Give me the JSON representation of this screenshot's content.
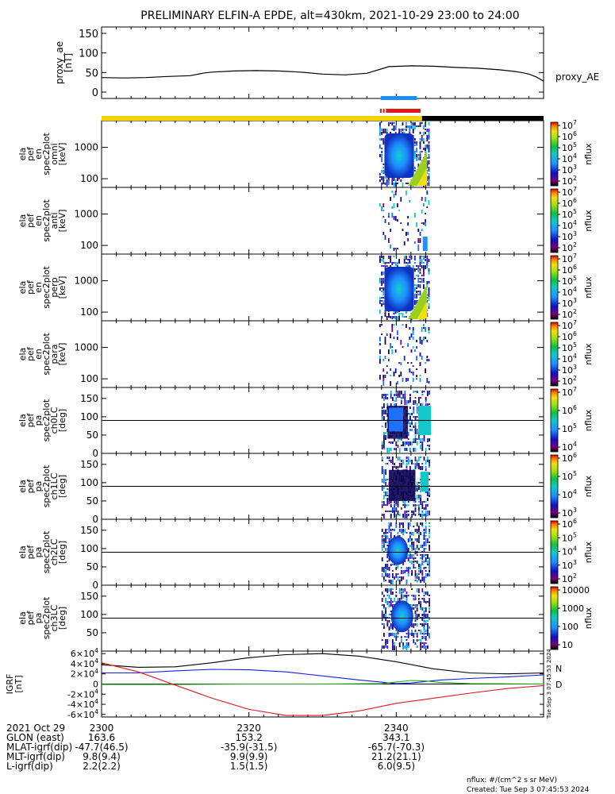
{
  "title": "PRELIMINARY ELFIN-A EPDE, alt=430km, 2021-10-29 23:00 to 24:00",
  "colors": {
    "proxy_line": "#000000",
    "bar_yellow": "#f5d400",
    "bar_black": "#000000",
    "bar_blue": "#1e8cff",
    "bar_red": "#e01818",
    "bx": "#000000",
    "by": "#1a1aee",
    "bz": "#19b019",
    "bt": "#e01818"
  },
  "chart_data": [
    {
      "type": "line",
      "name": "proxy_ae",
      "ylabel": [
        "proxy_ae",
        "[nT]"
      ],
      "legend": "proxy_AE",
      "ylim": [
        0,
        150
      ],
      "yticks": [
        "150",
        "100",
        "50",
        "0"
      ],
      "xlim": [
        0,
        60
      ],
      "x": [
        0,
        3,
        6,
        9,
        12,
        14,
        15,
        18,
        21,
        24,
        27,
        30,
        33,
        36,
        39,
        42,
        45,
        48,
        51,
        54,
        56,
        57,
        58,
        59,
        60
      ],
      "y": [
        37,
        36,
        37,
        40,
        42,
        49,
        51,
        54,
        55,
        54,
        51,
        46,
        44,
        48,
        65,
        67,
        66,
        63,
        61,
        57,
        53,
        50,
        46,
        39,
        28
      ]
    },
    {
      "type": "heatmap",
      "name": "omni",
      "ylabel": [
        "ela",
        "pef",
        "en",
        "spec2plot",
        "omni",
        "[keV]"
      ],
      "scale": "log",
      "yticks": [
        "1000",
        "100"
      ],
      "colorbar": {
        "label": "nflux",
        "ticks": [
          "10^7",
          "10^6",
          "10^5",
          "10^4",
          "10^3",
          "10^2"
        ]
      }
    },
    {
      "type": "heatmap",
      "name": "anti",
      "ylabel": [
        "ela",
        "pef",
        "en",
        "spec2plot",
        "anti",
        "[keV]"
      ],
      "scale": "log",
      "yticks": [
        "1000",
        "100"
      ],
      "colorbar": {
        "label": "nflux",
        "ticks": [
          "10^7",
          "10^6",
          "10^5",
          "10^4",
          "10^3",
          "10^2"
        ]
      }
    },
    {
      "type": "heatmap",
      "name": "perp",
      "ylabel": [
        "ela",
        "pef",
        "en",
        "spec2plot",
        "perp",
        "[keV]"
      ],
      "scale": "log",
      "yticks": [
        "1000",
        "100"
      ],
      "colorbar": {
        "label": "nflux",
        "ticks": [
          "10^7",
          "10^6",
          "10^5",
          "10^4",
          "10^3",
          "10^2"
        ]
      }
    },
    {
      "type": "heatmap",
      "name": "para",
      "ylabel": [
        "ela",
        "pef",
        "en",
        "spec2plot",
        "para",
        "[keV]"
      ],
      "scale": "log",
      "yticks": [
        "1000",
        "100"
      ],
      "colorbar": {
        "label": "nflux",
        "ticks": [
          "10^7",
          "10^6",
          "10^5",
          "10^4",
          "10^3",
          "10^2"
        ]
      }
    },
    {
      "type": "heatmap",
      "name": "ch0LC",
      "ylabel": [
        "ela",
        "pef",
        "pa",
        "spec2plot",
        "ch0LC",
        "[deg]"
      ],
      "ylim": [
        0,
        180
      ],
      "yticks": [
        "150",
        "100",
        "50",
        "0"
      ],
      "colorbar": {
        "label": "nflux",
        "ticks": [
          "10^7",
          "10^6",
          "10^5",
          "10^4"
        ]
      }
    },
    {
      "type": "heatmap",
      "name": "ch1LC",
      "ylabel": [
        "ela",
        "pef",
        "pa",
        "spec2plot",
        "ch1LC",
        "[deg]"
      ],
      "ylim": [
        0,
        180
      ],
      "yticks": [
        "150",
        "100",
        "50",
        "0"
      ],
      "colorbar": {
        "label": "nflux",
        "ticks": [
          "10^6",
          "10^5",
          "10^4",
          "10^3"
        ]
      }
    },
    {
      "type": "heatmap",
      "name": "ch2LC",
      "ylabel": [
        "ela",
        "pef",
        "pa",
        "spec2plot",
        "ch2LC",
        "[deg]"
      ],
      "ylim": [
        0,
        180
      ],
      "yticks": [
        "150",
        "100",
        "50",
        "0"
      ],
      "colorbar": {
        "label": "nflux",
        "ticks": [
          "10^6",
          "10^5",
          "10^4",
          "10^3",
          "10^2"
        ]
      }
    },
    {
      "type": "heatmap",
      "name": "ch3LC",
      "ylabel": [
        "ela",
        "pef",
        "pa",
        "spec2plot",
        "ch3LC",
        "[deg]"
      ],
      "ylim": [
        0,
        180
      ],
      "yticks": [
        "150",
        "100",
        "50"
      ],
      "colorbar": {
        "label": "nflux",
        "ticks": [
          "10000",
          "1000",
          "100",
          "10"
        ]
      }
    },
    {
      "type": "line",
      "name": "IGRF",
      "ylabel": [
        "IGRF",
        "[nT]"
      ],
      "ylim": [
        -65000,
        65000
      ],
      "yticks": [
        "6×10^4",
        "4×10^4",
        "2×10^4",
        "0",
        "-2×10^4",
        "-4×10^4",
        "-6×10^4"
      ],
      "legend_labels": [
        "N",
        "D"
      ],
      "xlim": [
        0,
        60
      ],
      "series": [
        {
          "color": "#000000",
          "x": [
            0,
            5,
            10,
            15,
            20,
            25,
            30,
            35,
            40,
            45,
            50,
            55,
            60
          ],
          "y": [
            38000,
            33000,
            34000,
            42000,
            52000,
            58000,
            60000,
            55000,
            44000,
            30000,
            22000,
            20000,
            22000
          ]
        },
        {
          "color": "#1a1aee",
          "x": [
            0,
            5,
            10,
            15,
            20,
            25,
            30,
            35,
            40,
            42,
            44,
            46,
            50,
            55,
            60
          ],
          "y": [
            22000,
            22000,
            26000,
            29000,
            28000,
            24000,
            16000,
            8000,
            1000,
            2000,
            5000,
            8000,
            11000,
            14000,
            18000
          ]
        },
        {
          "color": "#19b019",
          "x": [
            0,
            10,
            20,
            30,
            38,
            40,
            42,
            44,
            46,
            50,
            60
          ],
          "y": [
            -1000,
            -1000,
            0,
            0,
            1000,
            4000,
            7000,
            6000,
            3000,
            1000,
            0
          ]
        },
        {
          "color": "#e01818",
          "x": [
            0,
            5,
            10,
            15,
            20,
            25,
            30,
            35,
            40,
            45,
            50,
            55,
            60
          ],
          "y": [
            42000,
            24000,
            -2000,
            -28000,
            -50000,
            -62000,
            -62000,
            -53000,
            -38000,
            -28000,
            -18000,
            -9000,
            -3000
          ]
        }
      ]
    }
  ],
  "time_axis": {
    "rows": [
      {
        "label": "2021 Oct 29",
        "vals": [
          "2300",
          "2320",
          "2340"
        ]
      },
      {
        "label": "GLON (east)",
        "vals": [
          "163.6",
          "153.2",
          "343.1"
        ]
      },
      {
        "label": "MLAT-igrf(dip)",
        "vals": [
          "-47.7(46.5)",
          "-35.9(-31.5)",
          "-65.7(-70.3)"
        ]
      },
      {
        "label": "MLT-igrf(dip)",
        "vals": [
          "9.8(9.4)",
          "9.9(9.9)",
          "21.2(21.1)"
        ]
      },
      {
        "label": "L-igrf(dip)",
        "vals": [
          "2.2(2.2)",
          "1.5(1.5)",
          "6.0(9.5)"
        ]
      }
    ]
  },
  "footer": {
    "units": "nflux: #/(cm^2 s sr MeV)",
    "created": "Created: Tue Sep  3 07:45:53 2024",
    "side_stamp": "Tue Sep  3 07:45:53 2024"
  }
}
